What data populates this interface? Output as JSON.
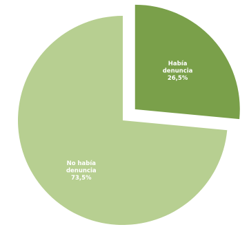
{
  "chart_data": {
    "type": "pie",
    "title": "",
    "slices": [
      {
        "label_lines": [
          "Había",
          "denuncia"
        ],
        "value_label": "26,5%",
        "value": 26.5,
        "color": "#7aa04a",
        "exploded": true
      },
      {
        "label_lines": [
          "No había",
          "denuncia"
        ],
        "value_label": "73,5%",
        "value": 73.5,
        "color": "#b7cf91",
        "exploded": false
      }
    ],
    "legend": "none",
    "start_angle_deg": 0,
    "direction": "clockwise"
  }
}
